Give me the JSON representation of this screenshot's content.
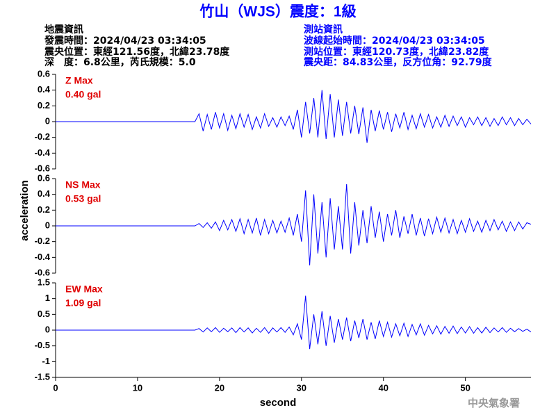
{
  "title": "竹山（WJS）震度：1級",
  "info_left": [
    "地震資訊",
    "發震時間：2024/04/23 03:34:05",
    "震央位置：東經121.56度，北緯23.78度",
    "深　度：6.8公里，芮氏規模：5.0"
  ],
  "info_right": [
    "測站資訊",
    "波線起始時間：2024/04/23 03:34:05",
    "測站位置：東經120.73度，北緯23.82度",
    "震央距：84.83公里，反方位角：92.79度"
  ],
  "ylabel": "acceleration",
  "xlabel": "second",
  "footer": "中央氣象署",
  "chart_data": [
    {
      "type": "line",
      "annotation": "Z Max",
      "max_label": "0.40 gal",
      "color": "#0000ff",
      "xlim": [
        0,
        58
      ],
      "ylim": [
        -0.6,
        0.6
      ],
      "yticks": [
        -0.6,
        -0.4,
        -0.2,
        0,
        0.2,
        0.4,
        0.6
      ],
      "x": [
        0,
        17,
        17.5,
        18,
        18.5,
        19,
        19.5,
        20,
        20.5,
        21,
        21.5,
        22,
        22.5,
        23,
        23.5,
        24,
        24.5,
        25,
        25.5,
        26,
        26.5,
        27,
        27.5,
        28,
        28.5,
        29,
        29.5,
        30,
        30.5,
        31,
        31.5,
        32,
        32.5,
        33,
        33.5,
        34,
        34.5,
        35,
        35.5,
        36,
        36.5,
        37,
        37.5,
        38,
        38.5,
        39,
        39.5,
        40,
        40.5,
        41,
        41.5,
        42,
        42.5,
        43,
        43.5,
        44,
        44.5,
        45,
        45.5,
        46,
        46.5,
        47,
        47.5,
        48,
        48.5,
        49,
        49.5,
        50,
        50.5,
        51,
        51.5,
        52,
        52.5,
        53,
        53.5,
        54,
        54.5,
        55,
        55.5,
        56,
        56.5,
        57,
        57.5,
        58
      ],
      "values": [
        0,
        0,
        0.1,
        -0.12,
        0.09,
        -0.1,
        0.12,
        -0.08,
        0.1,
        -0.11,
        0.08,
        -0.09,
        0.1,
        -0.07,
        0.09,
        -0.1,
        0.06,
        -0.08,
        0.1,
        -0.06,
        0.05,
        -0.07,
        0.06,
        -0.05,
        0.07,
        -0.1,
        0.15,
        -0.2,
        0.25,
        -0.15,
        0.3,
        -0.2,
        0.4,
        -0.22,
        0.35,
        -0.2,
        0.28,
        -0.18,
        0.25,
        -0.15,
        0.2,
        -0.16,
        0.18,
        -0.27,
        0.15,
        -0.12,
        0.14,
        -0.1,
        0.12,
        -0.13,
        0.1,
        -0.08,
        0.12,
        -0.1,
        0.08,
        -0.09,
        0.1,
        -0.07,
        0.09,
        -0.08,
        0.06,
        -0.07,
        0.08,
        -0.06,
        0.07,
        -0.05,
        0.06,
        -0.07,
        0.05,
        -0.04,
        0.06,
        -0.05,
        0.05,
        -0.06,
        0.04,
        -0.05,
        0.06,
        -0.04,
        0.05,
        -0.05,
        0.04,
        -0.04,
        0.03,
        -0.03
      ]
    },
    {
      "type": "line",
      "annotation": "NS Max",
      "max_label": "0.53 gal",
      "color": "#0000ff",
      "xlim": [
        0,
        58
      ],
      "ylim": [
        -0.6,
        0.6
      ],
      "yticks": [
        -0.6,
        -0.4,
        -0.2,
        0,
        0.2,
        0.4,
        0.6
      ],
      "x": [
        0,
        17,
        17.5,
        18,
        18.5,
        19,
        19.5,
        20,
        20.5,
        21,
        21.5,
        22,
        22.5,
        23,
        23.5,
        24,
        24.5,
        25,
        25.5,
        26,
        26.5,
        27,
        27.5,
        28,
        28.5,
        29,
        29.5,
        30,
        30.5,
        31,
        31.5,
        32,
        32.5,
        33,
        33.5,
        34,
        34.5,
        35,
        35.5,
        36,
        36.5,
        37,
        37.5,
        38,
        38.5,
        39,
        39.5,
        40,
        40.5,
        41,
        41.5,
        42,
        42.5,
        43,
        43.5,
        44,
        44.5,
        45,
        45.5,
        46,
        46.5,
        47,
        47.5,
        48,
        48.5,
        49,
        49.5,
        50,
        50.5,
        51,
        51.5,
        52,
        52.5,
        53,
        53.5,
        54,
        54.5,
        55,
        55.5,
        56,
        56.5,
        57,
        57.5,
        58
      ],
      "values": [
        0,
        0,
        0.03,
        -0.02,
        0.04,
        -0.03,
        0.05,
        -0.06,
        0.07,
        -0.05,
        0.08,
        -0.07,
        0.09,
        -0.1,
        0.08,
        -0.09,
        0.1,
        -0.12,
        0.08,
        -0.1,
        0.07,
        -0.09,
        0.06,
        -0.08,
        0.1,
        -0.12,
        0.15,
        -0.2,
        0.45,
        -0.5,
        0.4,
        -0.35,
        0.3,
        -0.4,
        0.35,
        -0.3,
        0.25,
        -0.3,
        0.53,
        -0.35,
        0.3,
        -0.25,
        0.2,
        -0.22,
        0.25,
        -0.15,
        0.18,
        -0.2,
        0.15,
        -0.12,
        0.2,
        -0.15,
        0.12,
        -0.1,
        0.15,
        -0.12,
        0.1,
        -0.13,
        0.09,
        -0.1,
        0.11,
        -0.08,
        0.1,
        -0.09,
        0.08,
        -0.1,
        0.07,
        -0.08,
        0.09,
        -0.07,
        0.06,
        -0.08,
        0.07,
        -0.06,
        0.08,
        -0.05,
        0.06,
        -0.07,
        0.05,
        -0.06,
        0.05,
        -0.04,
        0.04,
        0.02
      ]
    },
    {
      "type": "line",
      "annotation": "EW Max",
      "max_label": "1.09 gal",
      "color": "#0000ff",
      "xlim": [
        0,
        58
      ],
      "xticks": [
        0,
        10,
        20,
        30,
        40,
        50
      ],
      "ylim": [
        -1.5,
        1.5
      ],
      "yticks": [
        -1.5,
        -1,
        -0.5,
        0,
        0.5,
        1,
        1.5
      ],
      "x": [
        0,
        17,
        17.5,
        18,
        18.5,
        19,
        19.5,
        20,
        20.5,
        21,
        21.5,
        22,
        22.5,
        23,
        23.5,
        24,
        24.5,
        25,
        25.5,
        26,
        26.5,
        27,
        27.5,
        28,
        28.5,
        29,
        29.5,
        30,
        30.5,
        31,
        31.5,
        32,
        32.5,
        33,
        33.5,
        34,
        34.5,
        35,
        35.5,
        36,
        36.5,
        37,
        37.5,
        38,
        38.5,
        39,
        39.5,
        40,
        40.5,
        41,
        41.5,
        42,
        42.5,
        43,
        43.5,
        44,
        44.5,
        45,
        45.5,
        46,
        46.5,
        47,
        47.5,
        48,
        48.5,
        49,
        49.5,
        50,
        50.5,
        51,
        51.5,
        52,
        52.5,
        53,
        53.5,
        54,
        54.5,
        55,
        55.5,
        56,
        56.5,
        57,
        57.5,
        58
      ],
      "values": [
        0,
        0,
        0.05,
        -0.06,
        0.07,
        -0.05,
        0.08,
        -0.07,
        0.06,
        -0.05,
        0.07,
        -0.08,
        0.08,
        -0.06,
        0.07,
        -0.09,
        0.06,
        -0.07,
        0.08,
        -0.1,
        0.07,
        -0.06,
        0.08,
        -0.07,
        0.1,
        -0.15,
        0.2,
        -0.3,
        1.09,
        -0.6,
        0.5,
        -0.45,
        0.6,
        -0.5,
        0.45,
        -0.4,
        0.35,
        -0.3,
        0.4,
        -0.35,
        0.3,
        -0.25,
        0.35,
        -0.3,
        0.25,
        -0.28,
        0.3,
        -0.2,
        0.25,
        -0.22,
        0.2,
        -0.18,
        0.22,
        -0.2,
        0.18,
        -0.15,
        0.2,
        -0.16,
        0.15,
        -0.12,
        0.14,
        -0.13,
        0.12,
        -0.1,
        0.13,
        -0.11,
        0.1,
        -0.09,
        0.11,
        -0.1,
        0.08,
        -0.09,
        0.09,
        -0.08,
        0.07,
        -0.06,
        0.08,
        -0.07,
        0.06,
        -0.05,
        0.05,
        -0.04,
        0.03,
        -0.06
      ]
    }
  ]
}
